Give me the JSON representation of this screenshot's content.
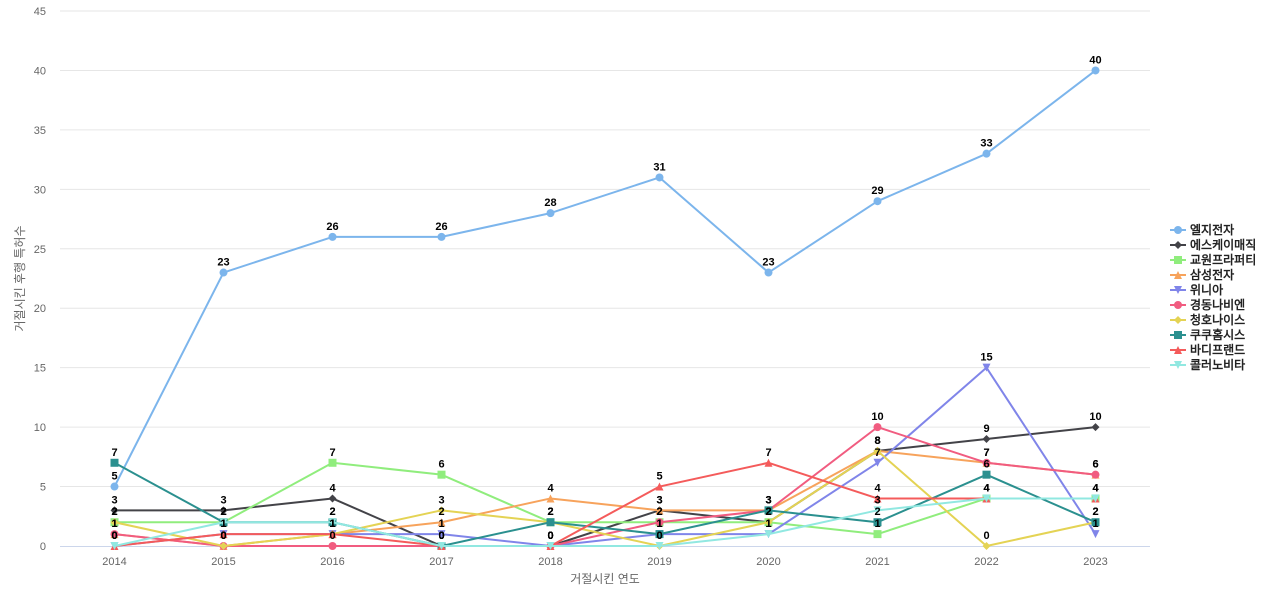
{
  "chart_data": {
    "type": "line",
    "xlabel": "거절시킨 연도",
    "ylabel": "거절시킨 후행 특허수",
    "x": [
      "2014",
      "2015",
      "2016",
      "2017",
      "2018",
      "2019",
      "2020",
      "2021",
      "2022",
      "2023"
    ],
    "ylim": [
      0,
      45
    ],
    "yticks": [
      0,
      5,
      10,
      15,
      20,
      25,
      30,
      35,
      40,
      45
    ],
    "grid": true,
    "legend_position": "right",
    "series": [
      {
        "name": "엘지전자",
        "color": "#7cb5ec",
        "marker": "circle",
        "values": [
          5,
          23,
          26,
          26,
          28,
          31,
          23,
          29,
          33,
          40
        ]
      },
      {
        "name": "에스케이매직",
        "color": "#434348",
        "marker": "diamond",
        "values": [
          3,
          3,
          4,
          0,
          0,
          3,
          2,
          8,
          9,
          10
        ]
      },
      {
        "name": "교원프라퍼티",
        "color": "#90ed7d",
        "marker": "square",
        "values": [
          2,
          2,
          7,
          6,
          2,
          2,
          2,
          1,
          4,
          4
        ]
      },
      {
        "name": "삼성전자",
        "color": "#f7a35c",
        "marker": "triangle",
        "values": [
          1,
          0,
          1,
          2,
          4,
          3,
          3,
          8,
          7,
          6
        ]
      },
      {
        "name": "위니아",
        "color": "#8085e9",
        "marker": "triangle-down",
        "values": [
          0,
          1,
          1,
          1,
          0,
          1,
          1,
          7,
          15,
          1
        ]
      },
      {
        "name": "경동나비엔",
        "color": "#f15c80",
        "marker": "circle",
        "values": [
          1,
          0,
          0,
          0,
          0,
          2,
          3,
          10,
          7,
          6
        ]
      },
      {
        "name": "청호나이스",
        "color": "#e4d354",
        "marker": "diamond",
        "values": [
          2,
          0,
          1,
          3,
          2,
          0,
          2,
          8,
          0,
          2
        ]
      },
      {
        "name": "쿠쿠홈시스",
        "color": "#2b908f",
        "marker": "square",
        "values": [
          7,
          2,
          2,
          0,
          2,
          1,
          3,
          2,
          6,
          2
        ]
      },
      {
        "name": "바디프랜드",
        "color": "#f45b5b",
        "marker": "triangle",
        "values": [
          0,
          1,
          1,
          0,
          0,
          5,
          7,
          4,
          4,
          4
        ]
      },
      {
        "name": "콜러노비타",
        "color": "#91e8e1",
        "marker": "triangle-down",
        "values": [
          0,
          2,
          2,
          0,
          0,
          0,
          1,
          3,
          4,
          4
        ]
      }
    ]
  }
}
